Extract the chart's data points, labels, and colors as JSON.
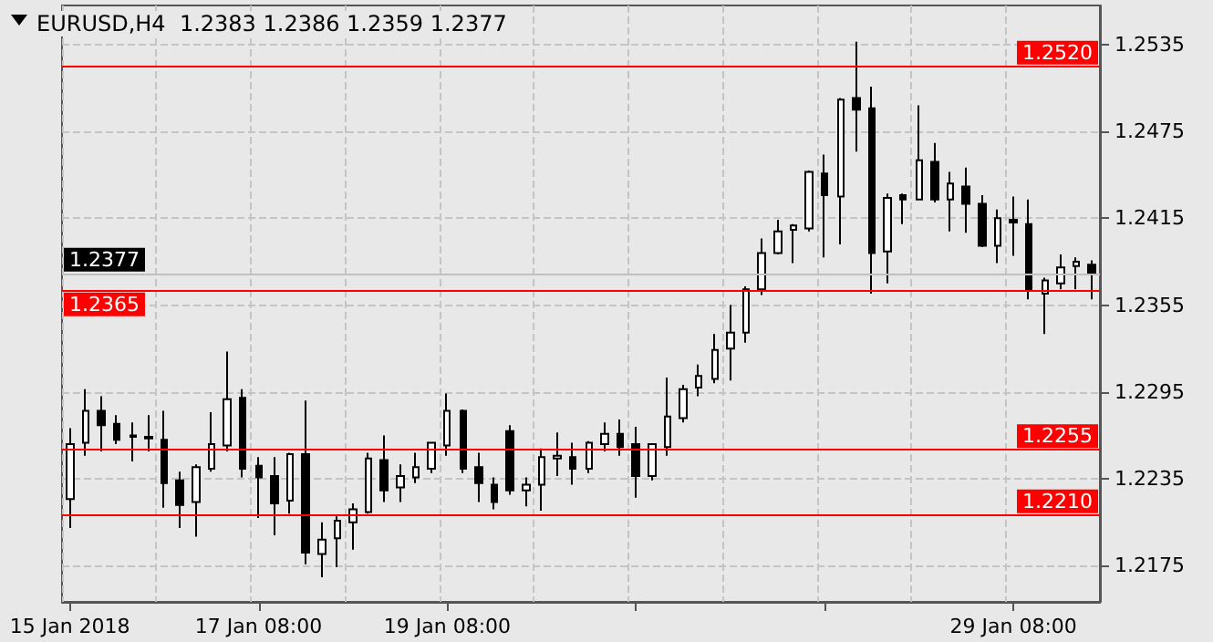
{
  "chart_data": {
    "type": "candlestick",
    "title": "EURUSD,H4  1.2383 1.2386 1.2359 1.2377",
    "categories": [
      "15 Jan 2018",
      null,
      null,
      null,
      null,
      null,
      null,
      null,
      null,
      null,
      null,
      null,
      "17 Jan 08:00",
      null,
      null,
      null,
      null,
      null,
      null,
      null,
      null,
      null,
      null,
      null,
      "19 Jan 08:00",
      null,
      null,
      null,
      null,
      null,
      null,
      null,
      null,
      null,
      null,
      null,
      null,
      null,
      null,
      null,
      null,
      null,
      null,
      null,
      null,
      null,
      null,
      null,
      null,
      null,
      null,
      null,
      null,
      null,
      null,
      null,
      null,
      null,
      null,
      null,
      "29 Jan 08:00",
      null,
      null,
      null,
      null,
      null
    ],
    "series": [
      {
        "color": "#000000",
        "ohlc": [
          [
            1.2221,
            1.227,
            1.2201,
            1.2259
          ],
          [
            1.226,
            1.2297,
            1.2251,
            1.2282
          ],
          [
            1.2282,
            1.2292,
            1.2254,
            1.2272
          ],
          [
            1.2273,
            1.2279,
            1.2259,
            1.2262
          ],
          [
            1.2265,
            1.2274,
            1.2247,
            1.2264
          ],
          [
            1.2264,
            1.2279,
            1.2254,
            1.2263
          ],
          [
            1.2262,
            1.2282,
            1.2215,
            1.2232
          ],
          [
            1.2234,
            1.224,
            1.2201,
            1.2217
          ],
          [
            1.2219,
            1.2245,
            1.2195,
            1.2243
          ],
          [
            1.2242,
            1.2281,
            1.224,
            1.2259
          ],
          [
            1.2258,
            1.2323,
            1.2254,
            1.229
          ],
          [
            1.2291,
            1.2297,
            1.2236,
            1.2242
          ],
          [
            1.2244,
            1.225,
            1.2208,
            1.2236
          ],
          [
            1.2237,
            1.225,
            1.2196,
            1.2218
          ],
          [
            1.222,
            1.2253,
            1.2211,
            1.2252
          ],
          [
            1.2252,
            1.2289,
            1.2176,
            1.2184
          ],
          [
            1.2183,
            1.2205,
            1.2167,
            1.2193
          ],
          [
            1.2194,
            1.2209,
            1.2174,
            1.2206
          ],
          [
            1.2205,
            1.2218,
            1.2186,
            1.2214
          ],
          [
            1.2212,
            1.2253,
            1.2211,
            1.2249
          ],
          [
            1.2248,
            1.2265,
            1.2219,
            1.2227
          ],
          [
            1.2229,
            1.2245,
            1.2219,
            1.2237
          ],
          [
            1.2236,
            1.2253,
            1.2232,
            1.2243
          ],
          [
            1.2242,
            1.226,
            1.2239,
            1.226
          ],
          [
            1.2258,
            1.2294,
            1.2251,
            1.2282
          ],
          [
            1.2282,
            1.2283,
            1.2239,
            1.2242
          ],
          [
            1.2243,
            1.2253,
            1.2219,
            1.2232
          ],
          [
            1.2231,
            1.2236,
            1.2214,
            1.2219
          ],
          [
            1.2268,
            1.2272,
            1.2224,
            1.2227
          ],
          [
            1.2227,
            1.2236,
            1.2216,
            1.2231
          ],
          [
            1.2231,
            1.2256,
            1.2213,
            1.225
          ],
          [
            1.2249,
            1.2267,
            1.2237,
            1.2251
          ],
          [
            1.225,
            1.226,
            1.2231,
            1.2242
          ],
          [
            1.2242,
            1.2261,
            1.2239,
            1.226
          ],
          [
            1.2259,
            1.2274,
            1.2254,
            1.2266
          ],
          [
            1.2266,
            1.2276,
            1.2251,
            1.2257
          ],
          [
            1.2259,
            1.2271,
            1.2222,
            1.2237
          ],
          [
            1.2237,
            1.2259,
            1.2234,
            1.2259
          ],
          [
            1.2257,
            1.2305,
            1.2251,
            1.2278
          ],
          [
            1.2277,
            1.23,
            1.2274,
            1.2297
          ],
          [
            1.2298,
            1.2314,
            1.2292,
            1.2306
          ],
          [
            1.2304,
            1.2335,
            1.2301,
            1.2324
          ],
          [
            1.2325,
            1.2355,
            1.2303,
            1.2336
          ],
          [
            1.2336,
            1.2368,
            1.2329,
            1.2366
          ],
          [
            1.2366,
            1.2401,
            1.2362,
            1.2391
          ],
          [
            1.2391,
            1.2414,
            1.239,
            1.2406
          ],
          [
            1.2407,
            1.2411,
            1.2384,
            1.241
          ],
          [
            1.2408,
            1.2448,
            1.2406,
            1.2447
          ],
          [
            1.2446,
            1.2459,
            1.2388,
            1.2431
          ],
          [
            1.243,
            1.2498,
            1.2397,
            1.2497
          ],
          [
            1.2498,
            1.2537,
            1.2461,
            1.249
          ],
          [
            1.2491,
            1.2506,
            1.2363,
            1.2391
          ],
          [
            1.2392,
            1.2432,
            1.237,
            1.2429
          ],
          [
            1.2431,
            1.2432,
            1.2411,
            1.2428
          ],
          [
            1.2428,
            1.2493,
            1.2428,
            1.2455
          ],
          [
            1.2454,
            1.2467,
            1.2426,
            1.2428
          ],
          [
            1.2428,
            1.2447,
            1.2406,
            1.2439
          ],
          [
            1.2437,
            1.245,
            1.2405,
            1.2425
          ],
          [
            1.2425,
            1.2431,
            1.2395,
            1.2396
          ],
          [
            1.2396,
            1.2421,
            1.2384,
            1.2415
          ],
          [
            1.2414,
            1.243,
            1.2389,
            1.2412
          ],
          [
            1.2411,
            1.2428,
            1.2359,
            1.2365
          ],
          [
            1.2363,
            1.2374,
            1.2335,
            1.2372
          ],
          [
            1.237,
            1.239,
            1.2366,
            1.2381
          ],
          [
            1.2382,
            1.2388,
            1.2366,
            1.2385
          ],
          [
            1.2383,
            1.2386,
            1.2359,
            1.2377
          ]
        ]
      }
    ],
    "ylim": [
      1.215,
      1.2562
    ],
    "yticks": [
      1.2175,
      1.2235,
      1.2295,
      1.2355,
      1.2415,
      1.2475,
      1.2535
    ],
    "ref_lines": [
      {
        "axis": "y",
        "value": 1.252,
        "label": "1.2520",
        "color": "#ff0000"
      },
      {
        "axis": "y",
        "value": 1.2377,
        "label": "1.2377",
        "color": "#c0c0c0"
      },
      {
        "axis": "y",
        "value": 1.2365,
        "label": "1.2365",
        "color": "#ff0000"
      },
      {
        "axis": "y",
        "value": 1.2255,
        "label": "1.2255",
        "color": "#ff0000"
      },
      {
        "axis": "y",
        "value": 1.221,
        "label": "1.2210",
        "color": "#ff0000"
      }
    ],
    "grid": true
  }
}
